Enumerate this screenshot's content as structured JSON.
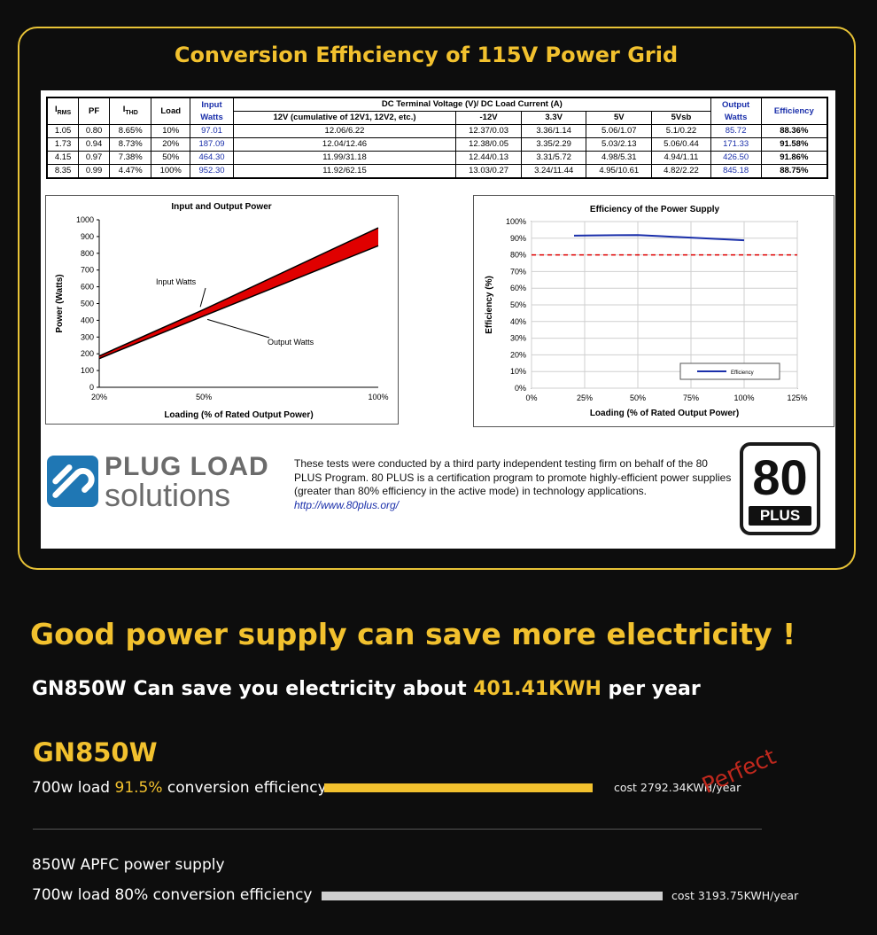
{
  "frame_title": "Conversion Effhciency of 115V Power Grid",
  "spec_table": {
    "headers": {
      "irms": "I",
      "irms_sub": "RMS",
      "pf": "PF",
      "ithd": "I",
      "ithd_sub": "THD",
      "load": "Load",
      "input": "Input Watts",
      "dc_group": "DC Terminal Voltage (V)/ DC Load Current (A)",
      "v12": "12V (cumulative of 12V1, 12V2, etc.)",
      "vm12": "-12V",
      "v33": "3.3V",
      "v5": "5V",
      "v5sb": "5Vsb",
      "output": "Output Watts",
      "efficiency": "Efficiency"
    },
    "rows": [
      {
        "irms": "1.05",
        "pf": "0.80",
        "ithd": "8.65%",
        "load": "10%",
        "input": "97.01",
        "v12": "12.06/6.22",
        "vm12": "12.37/0.03",
        "v33": "3.36/1.14",
        "v5": "5.06/1.07",
        "v5sb": "5.1/0.22",
        "output": "85.72",
        "eff": "88.36%"
      },
      {
        "irms": "1.73",
        "pf": "0.94",
        "ithd": "8.73%",
        "load": "20%",
        "input": "187.09",
        "v12": "12.04/12.46",
        "vm12": "12.38/0.05",
        "v33": "3.35/2.29",
        "v5": "5.03/2.13",
        "v5sb": "5.06/0.44",
        "output": "171.33",
        "eff": "91.58%"
      },
      {
        "irms": "4.15",
        "pf": "0.97",
        "ithd": "7.38%",
        "load": "50%",
        "input": "464.30",
        "v12": "11.99/31.18",
        "vm12": "12.44/0.13",
        "v33": "3.31/5.72",
        "v5": "4.98/5.31",
        "v5sb": "4.94/1.11",
        "output": "426.50",
        "eff": "91.86%"
      },
      {
        "irms": "8.35",
        "pf": "0.99",
        "ithd": "4.47%",
        "load": "100%",
        "input": "952.30",
        "v12": "11.92/62.15",
        "vm12": "13.03/0.27",
        "v33": "3.24/11.44",
        "v5": "4.95/10.61",
        "v5sb": "4.82/2.22",
        "output": "845.18",
        "eff": "88.75%"
      }
    ]
  },
  "chart_data": [
    {
      "type": "area",
      "title": "Input and Output Power",
      "xlabel": "Loading (% of Rated Output Power)",
      "ylabel": "Power (Watts)",
      "x_ticks": [
        "20%",
        "50%",
        "100%"
      ],
      "y_ticks": [
        "0",
        "100",
        "200",
        "300",
        "400",
        "500",
        "600",
        "700",
        "800",
        "900",
        "1000"
      ],
      "ylim": [
        0,
        1000
      ],
      "x": [
        20,
        50,
        100
      ],
      "series": [
        {
          "name": "Input Watts",
          "values": [
            187.09,
            464.3,
            952.3
          ]
        },
        {
          "name": "Output Watts",
          "values": [
            171.33,
            426.5,
            845.18
          ]
        }
      ],
      "colors": {
        "fill": "#e00000",
        "line": "#000000"
      }
    },
    {
      "type": "line",
      "title": "Efficiency of the Power Supply",
      "xlabel": "Loading (% of Rated Output Power)",
      "ylabel": "Efficiency (%)",
      "x_ticks": [
        "0%",
        "25%",
        "50%",
        "75%",
        "100%",
        "125%"
      ],
      "y_ticks": [
        "0%",
        "10%",
        "20%",
        "30%",
        "40%",
        "50%",
        "60%",
        "70%",
        "80%",
        "90%",
        "100%"
      ],
      "xlim": [
        0,
        125
      ],
      "ylim": [
        0,
        100
      ],
      "grid": true,
      "legend": "bottom-right",
      "x": [
        20,
        40,
        50,
        60,
        80,
        100
      ],
      "series": [
        {
          "name": "Efficiency",
          "values": [
            91.58,
            91.8,
            91.86,
            91.3,
            90,
            88.75
          ]
        }
      ],
      "threshold": 80,
      "colors": {
        "line": "#1a2faa",
        "threshold": "#e00000"
      }
    }
  ],
  "plug_logo": {
    "line1": "PLUG LOAD",
    "line2": "solutions"
  },
  "description": {
    "text": "These tests were conducted by a third party independent testing firm on behalf of the 80 PLUS Program. 80 PLUS is a certification program to promote highly-efficient power supplies (greater than 80% efficiency in the active mode) in technology applications.",
    "link": "http://www.80plus.org/"
  },
  "badge": {
    "number": "80",
    "label": "PLUS"
  },
  "headline": "Good power supply can save more electricity !",
  "subline": {
    "before": "GN850W Can save you electricity about ",
    "highlight": "401.41KWH",
    "after": " per year"
  },
  "gn": {
    "title": "GN850W",
    "row": {
      "before": "700w load ",
      "highlight": "91.5%",
      "after": " conversion efficiency"
    },
    "cost": "cost 2792.34KWH/year",
    "bar_color": "#f2c12e",
    "stamp": "Perfect"
  },
  "apfc": {
    "title": "850W APFC power supply",
    "row": "700w load 80% conversion efficiency",
    "cost": "cost 3193.75KWH/year",
    "bar_color": "#cfcfcf"
  }
}
